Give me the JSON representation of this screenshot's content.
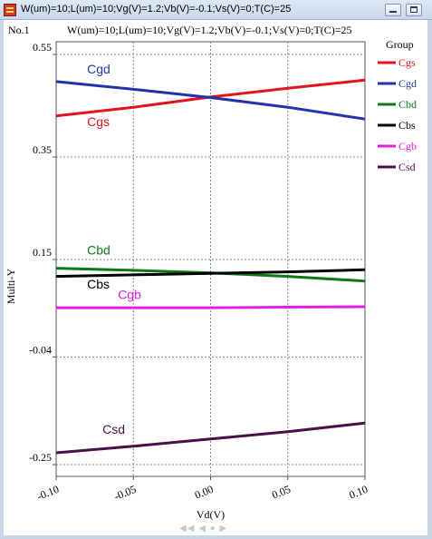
{
  "window": {
    "title": "W(um)=10;L(um)=10;Vg(V)=1.2;Vb(V)=-0.1;Vs(V)=0;T(C)=25"
  },
  "panel_label": "No.1",
  "nav_controls": "◀◀ ◀ ● ▶",
  "chart_data": {
    "type": "line",
    "title": "W(um)=10;L(um)=10;Vg(V)=1.2;Vb(V)=-0.1;Vs(V)=0;T(C)=25",
    "xlabel": "Vd(V)",
    "ylabel": "Multi-Y",
    "xlim": [
      -0.1,
      0.1
    ],
    "ylim": [
      -0.25,
      0.55
    ],
    "xticks": [
      -0.1,
      -0.05,
      0.0,
      0.05,
      0.1
    ],
    "xtick_labels": [
      "-0.10",
      "-0.05",
      "0.00",
      "0.05",
      "0.10"
    ],
    "yticks": [
      -0.25,
      -0.04,
      0.15,
      0.35,
      0.55
    ],
    "ytick_labels": [
      "-0.25",
      "-0.04",
      "0.15",
      "0.35",
      "0.55"
    ],
    "grid": true,
    "legend_title": "Group",
    "legend_position": "right",
    "series": [
      {
        "name": "Cgs",
        "color": "#e8121e",
        "x": [
          -0.1,
          -0.05,
          0.0,
          0.05,
          0.1
        ],
        "y": [
          0.43,
          0.447,
          0.467,
          0.484,
          0.5
        ],
        "label": "Cgs",
        "label_at": [
          -0.08,
          0.41
        ]
      },
      {
        "name": "Cgd",
        "color": "#2233aa",
        "x": [
          -0.1,
          -0.05,
          0.0,
          0.05,
          0.1
        ],
        "y": [
          0.497,
          0.482,
          0.466,
          0.447,
          0.424
        ],
        "label": "Cgd",
        "label_at": [
          -0.08,
          0.513
        ]
      },
      {
        "name": "Cbd",
        "color": "#0b7a12",
        "x": [
          -0.1,
          -0.05,
          0.0,
          0.05,
          0.1
        ],
        "y": [
          0.133,
          0.129,
          0.124,
          0.117,
          0.108
        ],
        "label": "Cbd",
        "label_at": [
          -0.08,
          0.16
        ]
      },
      {
        "name": "Cbs",
        "color": "#000000",
        "x": [
          -0.1,
          -0.05,
          0.0,
          0.05,
          0.1
        ],
        "y": [
          0.117,
          0.12,
          0.123,
          0.126,
          0.13
        ],
        "label": "Cbs",
        "label_at": [
          -0.08,
          0.093
        ]
      },
      {
        "name": "Cgb",
        "color": "#e020e0",
        "x": [
          -0.1,
          -0.05,
          0.0,
          0.05,
          0.1
        ],
        "y": [
          0.056,
          0.056,
          0.056,
          0.057,
          0.058
        ],
        "label": "Cgb",
        "label_at": [
          -0.06,
          0.073
        ]
      },
      {
        "name": "Csd",
        "color": "#4a1048",
        "x": [
          -0.1,
          -0.05,
          0.0,
          0.05,
          0.1
        ],
        "y": [
          -0.227,
          -0.214,
          -0.2,
          -0.186,
          -0.169
        ],
        "label": "Csd",
        "label_at": [
          -0.07,
          -0.19
        ]
      }
    ]
  }
}
